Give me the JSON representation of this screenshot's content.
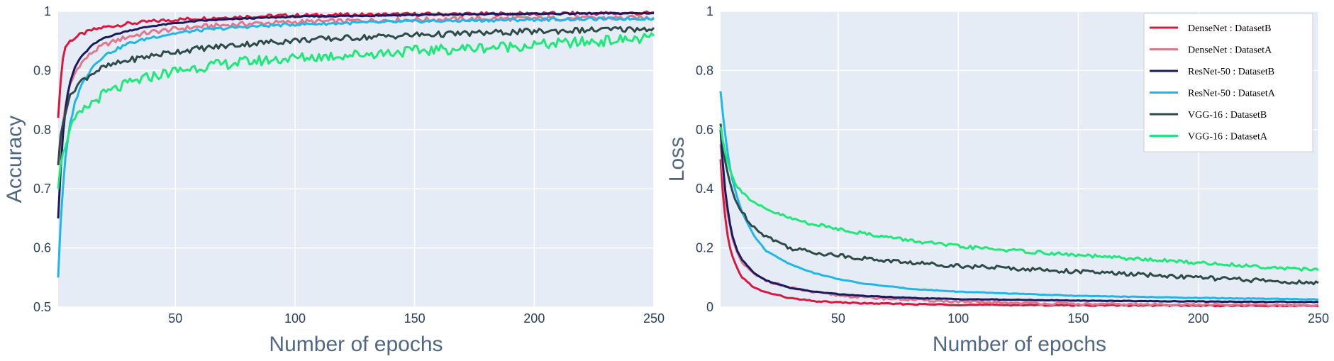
{
  "chart_data": [
    {
      "type": "line",
      "xlabel": "Number of epochs",
      "ylabel": "Accuracy",
      "xlim": [
        1,
        250
      ],
      "ylim": [
        0.5,
        1
      ],
      "xticks": [
        50,
        100,
        150,
        200,
        250
      ],
      "yticks": [
        0.5,
        0.6,
        0.7,
        0.8,
        0.9,
        1
      ],
      "grid": true,
      "legend": "none",
      "series": [
        {
          "name": "DenseNet : DatasetB",
          "color": "#d7193f",
          "x": [
            1,
            2,
            3,
            4,
            5,
            6,
            8,
            10,
            15,
            20,
            30,
            40,
            50,
            60,
            80,
            100,
            150,
            200,
            250
          ],
          "y": [
            0.82,
            0.88,
            0.92,
            0.94,
            0.945,
            0.95,
            0.955,
            0.96,
            0.968,
            0.973,
            0.979,
            0.983,
            0.986,
            0.988,
            0.991,
            0.993,
            0.995,
            0.996,
            0.997
          ]
        },
        {
          "name": "DenseNet : DatasetA",
          "color": "#e0788d",
          "x": [
            1,
            2,
            3,
            4,
            5,
            6,
            8,
            10,
            15,
            20,
            30,
            40,
            50,
            60,
            80,
            100,
            150,
            200,
            250
          ],
          "y": [
            0.74,
            0.78,
            0.81,
            0.84,
            0.86,
            0.875,
            0.895,
            0.91,
            0.93,
            0.943,
            0.957,
            0.965,
            0.97,
            0.974,
            0.979,
            0.982,
            0.986,
            0.988,
            0.989
          ]
        },
        {
          "name": "ResNet-50 : DatasetB",
          "color": "#1a1a5e",
          "x": [
            1,
            2,
            3,
            4,
            5,
            6,
            8,
            10,
            15,
            20,
            30,
            40,
            50,
            60,
            80,
            100,
            150,
            200,
            250
          ],
          "y": [
            0.65,
            0.73,
            0.79,
            0.83,
            0.86,
            0.88,
            0.905,
            0.92,
            0.942,
            0.955,
            0.967,
            0.975,
            0.98,
            0.984,
            0.988,
            0.991,
            0.994,
            0.996,
            0.997
          ]
        },
        {
          "name": "ResNet-50 : DatasetA",
          "color": "#1fb6e8",
          "x": [
            1,
            2,
            3,
            4,
            5,
            6,
            8,
            10,
            15,
            20,
            30,
            40,
            50,
            60,
            80,
            100,
            150,
            200,
            250
          ],
          "y": [
            0.55,
            0.64,
            0.7,
            0.75,
            0.78,
            0.81,
            0.845,
            0.87,
            0.905,
            0.925,
            0.945,
            0.956,
            0.963,
            0.968,
            0.974,
            0.978,
            0.983,
            0.986,
            0.988
          ]
        },
        {
          "name": "VGG-16 : DatasetB",
          "color": "#2e4a4a",
          "x": [
            1,
            2,
            3,
            4,
            5,
            6,
            8,
            10,
            15,
            20,
            30,
            40,
            50,
            60,
            80,
            100,
            150,
            200,
            250
          ],
          "y": [
            0.74,
            0.79,
            0.81,
            0.83,
            0.845,
            0.855,
            0.87,
            0.88,
            0.895,
            0.905,
            0.917,
            0.925,
            0.932,
            0.937,
            0.945,
            0.951,
            0.96,
            0.966,
            0.971
          ]
        },
        {
          "name": "VGG-16 : DatasetA",
          "color": "#1ee878",
          "x": [
            1,
            2,
            3,
            4,
            5,
            6,
            8,
            10,
            15,
            20,
            30,
            40,
            50,
            60,
            80,
            100,
            150,
            200,
            250
          ],
          "y": [
            0.7,
            0.74,
            0.76,
            0.775,
            0.79,
            0.8,
            0.815,
            0.825,
            0.845,
            0.86,
            0.877,
            0.89,
            0.899,
            0.906,
            0.915,
            0.921,
            0.933,
            0.943,
            0.955
          ]
        }
      ]
    },
    {
      "type": "line",
      "xlabel": "Number of epochs",
      "ylabel": "Loss",
      "xlim": [
        1,
        250
      ],
      "ylim": [
        0,
        1
      ],
      "xticks": [
        50,
        100,
        150,
        200,
        250
      ],
      "yticks": [
        0,
        0.2,
        0.4,
        0.6,
        0.8,
        1
      ],
      "grid": true,
      "legend": "top-right",
      "series": [
        {
          "name": "DenseNet : DatasetB",
          "color": "#d7193f",
          "x": [
            1,
            2,
            3,
            4,
            5,
            6,
            8,
            10,
            15,
            20,
            30,
            40,
            50,
            60,
            80,
            100,
            150,
            200,
            250
          ],
          "y": [
            0.5,
            0.38,
            0.3,
            0.24,
            0.2,
            0.17,
            0.13,
            0.1,
            0.065,
            0.05,
            0.03,
            0.02,
            0.016,
            0.013,
            0.01,
            0.008,
            0.006,
            0.005,
            0.004
          ]
        },
        {
          "name": "DenseNet : DatasetA",
          "color": "#e0788d",
          "x": [
            1,
            2,
            3,
            4,
            5,
            6,
            8,
            10,
            15,
            20,
            30,
            40,
            50,
            60,
            80,
            100,
            150,
            200,
            250
          ],
          "y": [
            0.55,
            0.45,
            0.37,
            0.31,
            0.27,
            0.23,
            0.18,
            0.15,
            0.11,
            0.09,
            0.065,
            0.05,
            0.04,
            0.033,
            0.025,
            0.018,
            0.01,
            0.008,
            0.006
          ]
        },
        {
          "name": "ResNet-50 : DatasetB",
          "color": "#1a1a5e",
          "x": [
            1,
            2,
            3,
            4,
            5,
            6,
            8,
            10,
            15,
            20,
            30,
            40,
            50,
            60,
            80,
            100,
            150,
            200,
            250
          ],
          "y": [
            0.6,
            0.48,
            0.39,
            0.33,
            0.28,
            0.24,
            0.19,
            0.16,
            0.115,
            0.09,
            0.065,
            0.052,
            0.044,
            0.038,
            0.031,
            0.027,
            0.022,
            0.019,
            0.017
          ]
        },
        {
          "name": "ResNet-50 : DatasetA",
          "color": "#1fb6e8",
          "x": [
            1,
            2,
            3,
            4,
            5,
            6,
            8,
            10,
            15,
            20,
            30,
            40,
            50,
            60,
            80,
            100,
            150,
            200,
            250
          ],
          "y": [
            0.73,
            0.65,
            0.58,
            0.52,
            0.47,
            0.43,
            0.37,
            0.32,
            0.24,
            0.19,
            0.145,
            0.115,
            0.095,
            0.08,
            0.062,
            0.052,
            0.038,
            0.031,
            0.026
          ]
        },
        {
          "name": "VGG-16 : DatasetB",
          "color": "#2e4a4a",
          "x": [
            1,
            2,
            3,
            4,
            5,
            6,
            8,
            10,
            15,
            20,
            30,
            40,
            50,
            60,
            80,
            100,
            150,
            200,
            250
          ],
          "y": [
            0.62,
            0.55,
            0.49,
            0.45,
            0.42,
            0.39,
            0.35,
            0.32,
            0.27,
            0.24,
            0.2,
            0.185,
            0.175,
            0.165,
            0.15,
            0.14,
            0.12,
            0.1,
            0.08
          ]
        },
        {
          "name": "VGG-16 : DatasetA",
          "color": "#1ee878",
          "x": [
            1,
            2,
            3,
            4,
            5,
            6,
            8,
            10,
            15,
            20,
            30,
            40,
            50,
            60,
            80,
            100,
            150,
            200,
            250
          ],
          "y": [
            0.61,
            0.56,
            0.52,
            0.49,
            0.46,
            0.44,
            0.41,
            0.39,
            0.35,
            0.33,
            0.3,
            0.28,
            0.265,
            0.25,
            0.225,
            0.205,
            0.175,
            0.15,
            0.125
          ]
        }
      ]
    }
  ]
}
